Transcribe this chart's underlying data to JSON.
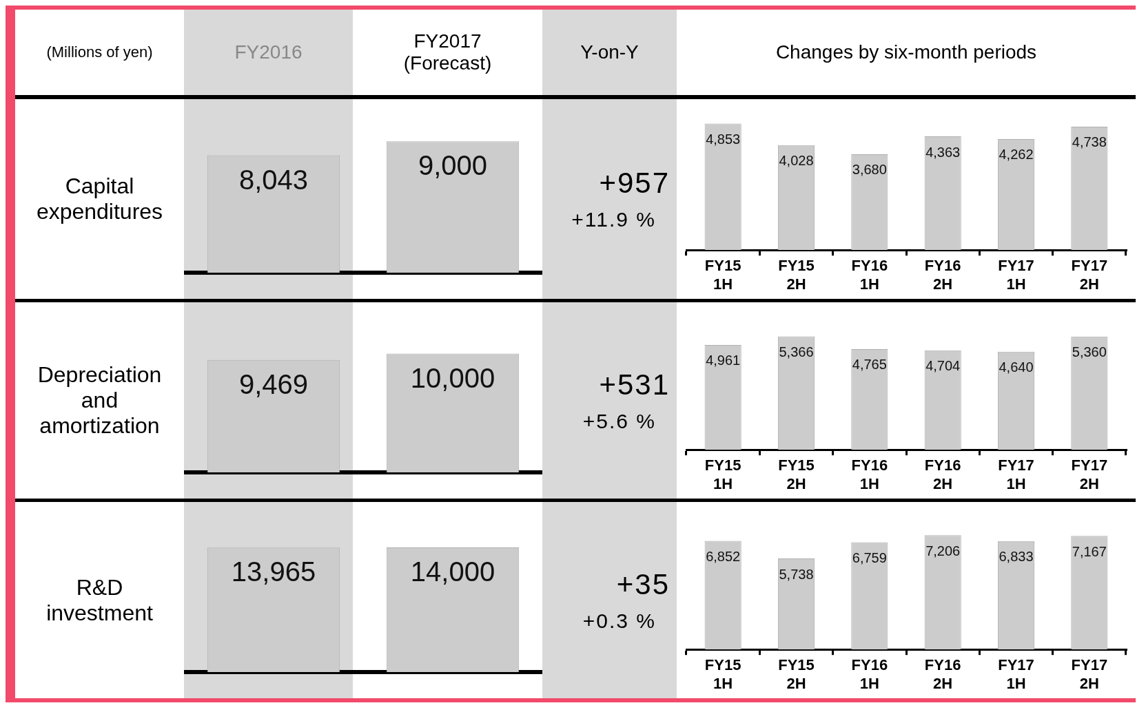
{
  "chart_data": [
    {
      "type": "bar",
      "ylabel": "Capital expenditures",
      "annotations": [
        "(Millions of yen)"
      ],
      "categories": [
        "FY2016",
        "FY2017 (Forecast)"
      ],
      "values": [
        8043,
        9000
      ],
      "value_labels": [
        "8,043",
        "9,000"
      ],
      "color": "#cccccc"
    },
    {
      "type": "other",
      "title": "Y-on-Y",
      "annotations": [
        "+957",
        "+11.9 %"
      ]
    },
    {
      "type": "bar",
      "title": "Changes by six-month periods",
      "categories": [
        "FY15 1H",
        "FY15 2H",
        "FY16 1H",
        "FY16 2H",
        "FY17 1H",
        "FY17 2H"
      ],
      "values": [
        4853,
        4028,
        3680,
        4363,
        4262,
        4738
      ],
      "value_labels": [
        "4,853",
        "4,028",
        "3,680",
        "4,363",
        "4,262",
        "4,738"
      ],
      "color": "#cccccc"
    },
    {
      "type": "bar",
      "ylabel": "Depreciation and amortization",
      "categories": [
        null,
        null
      ],
      "values": [
        9469,
        10000
      ],
      "value_labels": [
        "9,469",
        "10,000"
      ],
      "color": "#cccccc"
    },
    {
      "type": "other",
      "annotations": [
        "+531",
        "+5.6 %"
      ]
    },
    {
      "type": "bar",
      "categories": [
        "FY15 1H",
        "FY15 2H",
        "FY16 1H",
        "FY16 2H",
        "FY17 1H",
        "FY17 2H"
      ],
      "values": [
        4961,
        5366,
        4765,
        4704,
        4640,
        5360
      ],
      "value_labels": [
        "4,961",
        "5,366",
        "4,765",
        "4,704",
        "4,640",
        "5,360"
      ],
      "color": "#cccccc"
    },
    {
      "type": "bar",
      "ylabel": "R&D investment",
      "categories": [
        null,
        null
      ],
      "values": [
        13965,
        14000
      ],
      "value_labels": [
        "13,965",
        "14,000"
      ],
      "color": "#cccccc"
    },
    {
      "type": "other",
      "annotations": [
        "+35",
        "+0.3 %"
      ]
    },
    {
      "type": "bar",
      "categories": [
        "FY15 1H",
        "FY15 2H",
        "FY16 1H",
        "FY16 2H",
        "FY17 1H",
        "FY17 2H"
      ],
      "values": [
        6852,
        5738,
        6759,
        7206,
        6833,
        7167
      ],
      "value_labels": [
        "6,852",
        "5,738",
        "6,759",
        "7,206",
        "6,833",
        "7,167"
      ],
      "color": "#cccccc"
    }
  ]
}
